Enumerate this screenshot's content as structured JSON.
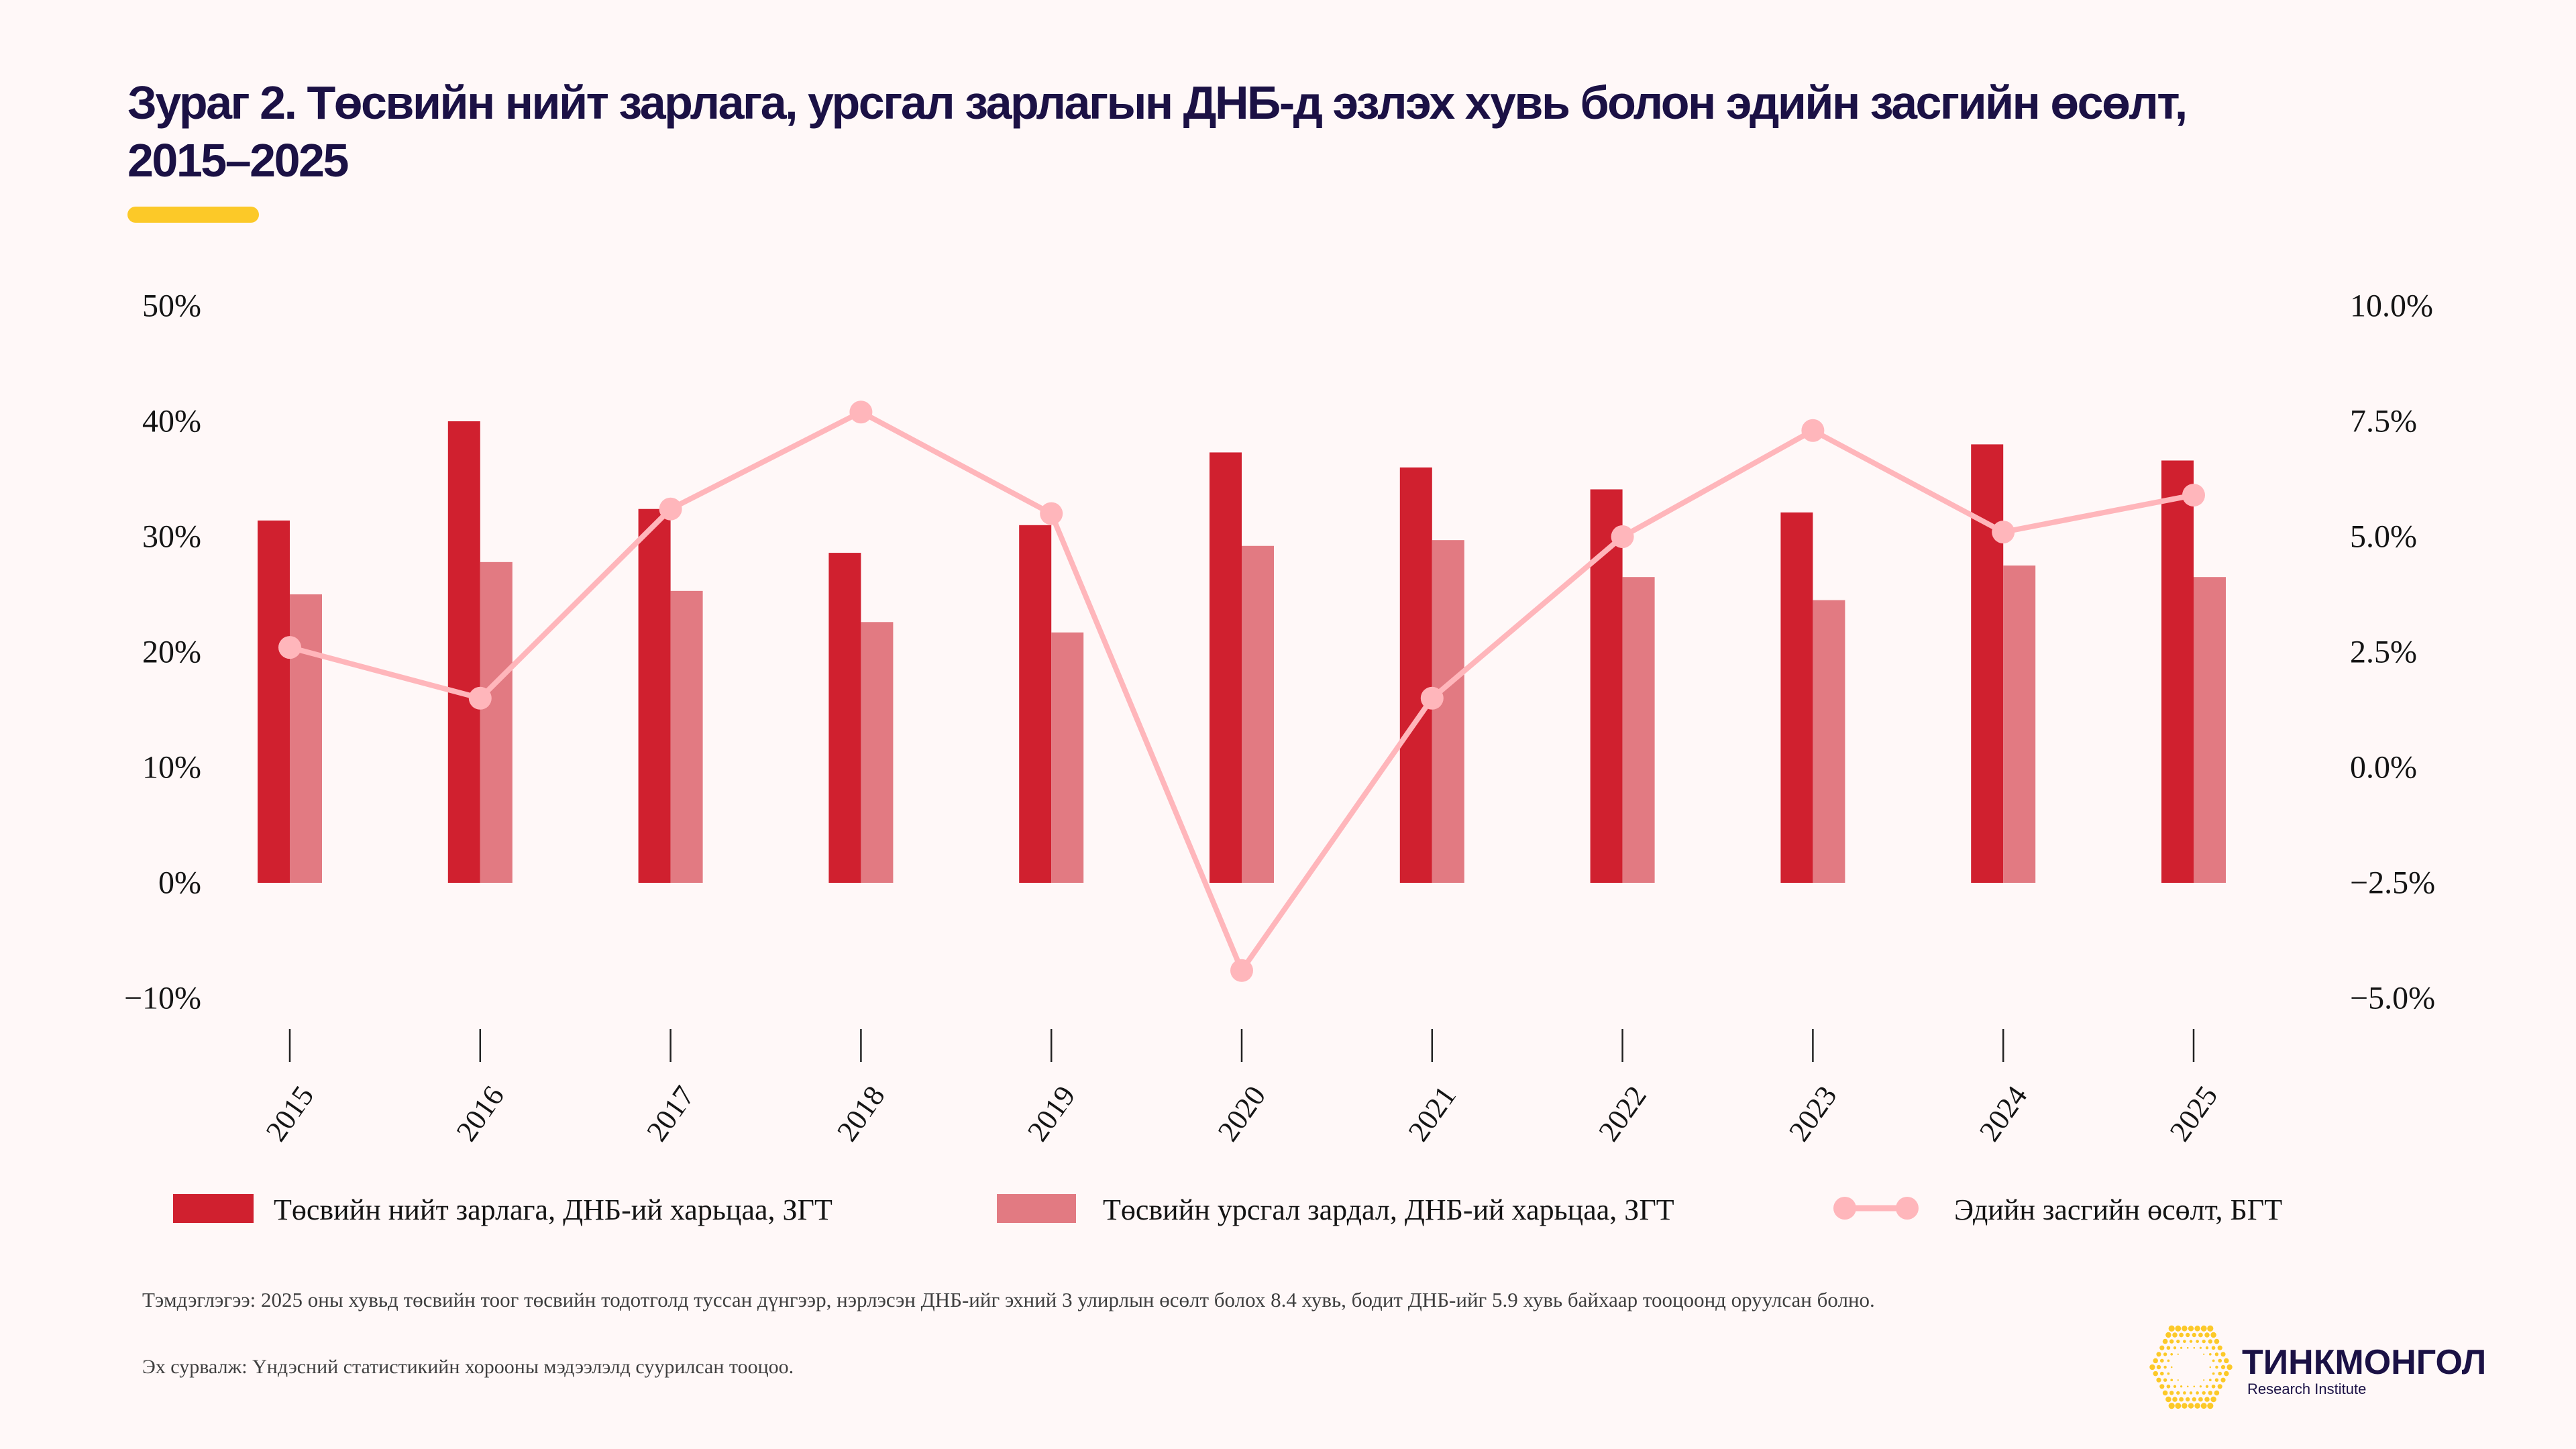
{
  "title": {
    "line1": "Зураг 2. Төсвийн нийт зарлага, урсгал зарлагын ДНБ-д эзлэх хувь болон эдийн засгийн өсөлт,",
    "line2": "2015–2025"
  },
  "colors": {
    "background": "#fff8f8",
    "title": "#1b1145",
    "accent": "#fcc928",
    "bar_total": "#d0202f",
    "bar_current": "#e27a82",
    "line_growth": "#ffb6bb",
    "axis": "#141414"
  },
  "chart_data": {
    "type": "bar+line",
    "title": "Зураг 2. Төсвийн нийт зарлага, урсгал зарлагын ДНБ-д эзлэх хувь болон эдийн засгийн өсөлт, 2015–2025",
    "xlabel": "",
    "ylabel": "",
    "categories": [
      "2015",
      "2016",
      "2017",
      "2018",
      "2019",
      "2020",
      "2021",
      "2022",
      "2023",
      "2024",
      "2025"
    ],
    "series": [
      {
        "name": "Төсвийн нийт зарлага, ДНБ-ий харьцаа, ЗГТ",
        "type": "bar",
        "axis": "left",
        "color": "#d0202f",
        "values": [
          31.4,
          40.0,
          32.4,
          28.6,
          31.0,
          37.3,
          36.0,
          34.1,
          32.1,
          38.0,
          36.6
        ]
      },
      {
        "name": "Төсвийн урсгал зардал, ДНБ-ий харьцаа, ЗГТ",
        "type": "bar",
        "axis": "left",
        "color": "#e27a82",
        "values": [
          25.0,
          27.8,
          25.3,
          22.6,
          21.7,
          29.2,
          29.7,
          26.5,
          24.5,
          27.5,
          26.5
        ]
      },
      {
        "name": "Эдийн засгийн өсөлт, БГТ",
        "type": "line",
        "axis": "right",
        "color": "#ffb6bb",
        "values": [
          2.6,
          1.5,
          5.6,
          7.7,
          5.5,
          -4.4,
          1.5,
          5.0,
          7.3,
          5.1,
          5.9
        ]
      }
    ],
    "y_left": {
      "range": [
        -10,
        50
      ],
      "ticks": [
        50,
        40,
        30,
        20,
        10,
        0,
        -10
      ],
      "tick_labels": [
        "50%",
        "40%",
        "30%",
        "20%",
        "10%",
        "0%",
        "−10%"
      ]
    },
    "y_right": {
      "range": [
        -5,
        10
      ],
      "ticks": [
        10,
        7.5,
        5,
        2.5,
        0,
        -2.5,
        -5
      ],
      "tick_labels": [
        "10.0%",
        "7.5%",
        "5.0%",
        "2.5%",
        "0.0%",
        "−2.5%",
        "−5.0%"
      ]
    },
    "grid": false,
    "legend_position": "bottom"
  },
  "note": "Тэмдэглэгээ: 2025 оны хувьд төсвийн тоог төсвийн тодотголд туссан дүнгээр, нэрлэсэн ДНБ-ийг эхний 3 улирлын өсөлт болох 8.4 хувь, бодит ДНБ-ийг 5.9 хувь байхаар тооцоонд оруулсан болно.",
  "source": "Эх сурвалж: Үндэсний статистикийн хорооны мэдээлэлд суурилсан тооцоо.",
  "logo": {
    "name": "ТИНКМОНГОЛ",
    "subtitle": "Research Institute",
    "icon": "hexagon-dots-icon"
  }
}
